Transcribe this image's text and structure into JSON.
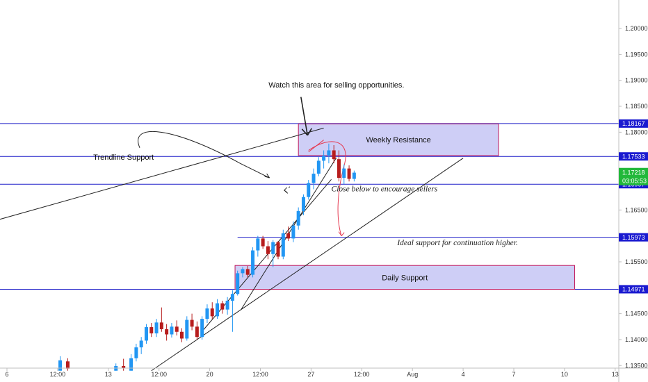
{
  "chart_data": {
    "type": "candlestick",
    "y_axis": {
      "range": [
        1.1345,
        1.2055
      ],
      "ticks": [
        "1.20000",
        "1.19500",
        "1.19000",
        "1.18500",
        "1.18000",
        "1.16500",
        "1.16000",
        "1.15500",
        "1.14500",
        "1.14000",
        "1.13500"
      ]
    },
    "x_axis": {
      "range": [
        0,
        17.5
      ],
      "ticks": [
        {
          "label": "6",
          "x": 0
        },
        {
          "label": "12:00",
          "x": 1
        },
        {
          "label": "13",
          "x": 2
        },
        {
          "label": "12:00",
          "x": 3
        },
        {
          "label": "20",
          "x": 4
        },
        {
          "label": "12:00",
          "x": 5
        },
        {
          "label": "27",
          "x": 6
        },
        {
          "label": "12:00",
          "x": 7
        },
        {
          "label": "Aug",
          "x": 8
        },
        {
          "label": "4",
          "x": 9
        },
        {
          "label": "7",
          "x": 10
        },
        {
          "label": "10",
          "x": 11
        },
        {
          "label": "13",
          "x": 12
        }
      ]
    },
    "grid": false,
    "colors": {
      "up": "#2196f3",
      "down": "#b71c1c",
      "level_line": "#1e1ec8",
      "zone_fill": "#c5c5f5",
      "zone_border": "#c2185b",
      "arrow": "#e53950",
      "current_price": "#22b83a",
      "tag": "#1a1ad0"
    },
    "current_price": {
      "price": 1.17218,
      "label": "1.17218",
      "countdown": "03:05:53"
    },
    "levels": [
      {
        "price": 1.18167,
        "label": "1.18167"
      },
      {
        "price": 1.17533,
        "label": "1.17533"
      },
      {
        "price": 1.16997,
        "label": "1.16997"
      },
      {
        "price": 1.15973,
        "label": "1.15973",
        "x_start": 4.55
      },
      {
        "price": 1.14971,
        "label": "1.14971"
      }
    ],
    "zones": [
      {
        "label": "Weekly Resistance",
        "x": [
          5.75,
          9.7
        ],
        "y": [
          1.1755,
          1.1816
        ]
      },
      {
        "label": "Daily Support",
        "x": [
          4.5,
          11.2
        ],
        "y": [
          1.1497,
          1.1543
        ]
      }
    ],
    "annotations": [
      {
        "text": "Watch this area for selling opportunities.",
        "x": 6.5,
        "y": 1.1886
      },
      {
        "text": "Trendline Support",
        "x": 2.3,
        "y": 1.1747
      },
      {
        "text": "Close below to encourage sellers",
        "x": 6.4,
        "y": 1.1686
      },
      {
        "text": "Ideal support for continuation higher.",
        "x": 7.7,
        "y": 1.1582
      }
    ],
    "candles": [
      {
        "x": 1.05,
        "o": 1.134,
        "h": 1.1368,
        "l": 1.134,
        "c": 1.136
      },
      {
        "x": 1.2,
        "o": 1.1358,
        "h": 1.1364,
        "l": 1.134,
        "c": 1.1344
      },
      {
        "x": 2.15,
        "o": 1.134,
        "h": 1.1354,
        "l": 1.134,
        "c": 1.1349
      },
      {
        "x": 2.3,
        "o": 1.1349,
        "h": 1.1363,
        "l": 1.134,
        "c": 1.1345
      },
      {
        "x": 2.45,
        "o": 1.134,
        "h": 1.1372,
        "l": 1.134,
        "c": 1.1364
      },
      {
        "x": 2.55,
        "o": 1.1364,
        "h": 1.1392,
        "l": 1.1358,
        "c": 1.1385
      },
      {
        "x": 2.65,
        "o": 1.1385,
        "h": 1.1405,
        "l": 1.1372,
        "c": 1.1398
      },
      {
        "x": 2.75,
        "o": 1.1398,
        "h": 1.143,
        "l": 1.1392,
        "c": 1.1424
      },
      {
        "x": 2.85,
        "o": 1.1424,
        "h": 1.1432,
        "l": 1.1405,
        "c": 1.1412
      },
      {
        "x": 2.95,
        "o": 1.1412,
        "h": 1.144,
        "l": 1.1405,
        "c": 1.1433
      },
      {
        "x": 3.05,
        "o": 1.1433,
        "h": 1.1462,
        "l": 1.1415,
        "c": 1.142
      },
      {
        "x": 3.15,
        "o": 1.142,
        "h": 1.143,
        "l": 1.1398,
        "c": 1.141
      },
      {
        "x": 3.25,
        "o": 1.141,
        "h": 1.1432,
        "l": 1.1404,
        "c": 1.1425
      },
      {
        "x": 3.35,
        "o": 1.1425,
        "h": 1.1437,
        "l": 1.1408,
        "c": 1.1415
      },
      {
        "x": 3.45,
        "o": 1.1415,
        "h": 1.1422,
        "l": 1.1395,
        "c": 1.1402
      },
      {
        "x": 3.55,
        "o": 1.1402,
        "h": 1.1445,
        "l": 1.1398,
        "c": 1.1438
      },
      {
        "x": 3.65,
        "o": 1.1438,
        "h": 1.145,
        "l": 1.1418,
        "c": 1.1425
      },
      {
        "x": 3.75,
        "o": 1.1425,
        "h": 1.1435,
        "l": 1.14,
        "c": 1.1405
      },
      {
        "x": 3.85,
        "o": 1.1405,
        "h": 1.1445,
        "l": 1.14,
        "c": 1.144
      },
      {
        "x": 3.95,
        "o": 1.144,
        "h": 1.1468,
        "l": 1.1432,
        "c": 1.146
      },
      {
        "x": 4.05,
        "o": 1.146,
        "h": 1.1472,
        "l": 1.144,
        "c": 1.1445
      },
      {
        "x": 4.15,
        "o": 1.1445,
        "h": 1.1478,
        "l": 1.144,
        "c": 1.147
      },
      {
        "x": 4.25,
        "o": 1.147,
        "h": 1.1475,
        "l": 1.145,
        "c": 1.1458
      },
      {
        "x": 4.35,
        "o": 1.1458,
        "h": 1.1482,
        "l": 1.1448,
        "c": 1.1475
      },
      {
        "x": 4.45,
        "o": 1.1475,
        "h": 1.1495,
        "l": 1.1415,
        "c": 1.1488
      },
      {
        "x": 4.55,
        "o": 1.1488,
        "h": 1.1533,
        "l": 1.1485,
        "c": 1.1528
      },
      {
        "x": 4.65,
        "o": 1.1528,
        "h": 1.154,
        "l": 1.152,
        "c": 1.1536
      },
      {
        "x": 4.75,
        "o": 1.1536,
        "h": 1.1542,
        "l": 1.152,
        "c": 1.1525
      },
      {
        "x": 4.85,
        "o": 1.1525,
        "h": 1.1578,
        "l": 1.152,
        "c": 1.1572
      },
      {
        "x": 4.95,
        "o": 1.1572,
        "h": 1.16,
        "l": 1.156,
        "c": 1.1595
      },
      {
        "x": 5.05,
        "o": 1.1595,
        "h": 1.16,
        "l": 1.1575,
        "c": 1.158
      },
      {
        "x": 5.15,
        "o": 1.158,
        "h": 1.159,
        "l": 1.1555,
        "c": 1.1565
      },
      {
        "x": 5.25,
        "o": 1.1565,
        "h": 1.1592,
        "l": 1.154,
        "c": 1.1588
      },
      {
        "x": 5.35,
        "o": 1.1588,
        "h": 1.159,
        "l": 1.1555,
        "c": 1.156
      },
      {
        "x": 5.45,
        "o": 1.156,
        "h": 1.1612,
        "l": 1.1555,
        "c": 1.1605
      },
      {
        "x": 5.55,
        "o": 1.1605,
        "h": 1.1618,
        "l": 1.159,
        "c": 1.1595
      },
      {
        "x": 5.65,
        "o": 1.1595,
        "h": 1.1628,
        "l": 1.1588,
        "c": 1.162
      },
      {
        "x": 5.75,
        "o": 1.162,
        "h": 1.1655,
        "l": 1.1612,
        "c": 1.1648
      },
      {
        "x": 5.85,
        "o": 1.1648,
        "h": 1.168,
        "l": 1.164,
        "c": 1.1675
      },
      {
        "x": 5.95,
        "o": 1.1675,
        "h": 1.1708,
        "l": 1.167,
        "c": 1.1702
      },
      {
        "x": 6.05,
        "o": 1.1702,
        "h": 1.173,
        "l": 1.169,
        "c": 1.172
      },
      {
        "x": 6.15,
        "o": 1.172,
        "h": 1.1752,
        "l": 1.1715,
        "c": 1.1745
      },
      {
        "x": 6.25,
        "o": 1.1745,
        "h": 1.1765,
        "l": 1.173,
        "c": 1.1755
      },
      {
        "x": 6.35,
        "o": 1.1755,
        "h": 1.1778,
        "l": 1.174,
        "c": 1.1765
      },
      {
        "x": 6.45,
        "o": 1.1765,
        "h": 1.1775,
        "l": 1.174,
        "c": 1.1748
      },
      {
        "x": 6.55,
        "o": 1.1748,
        "h": 1.1765,
        "l": 1.1705,
        "c": 1.1712
      },
      {
        "x": 6.65,
        "o": 1.1712,
        "h": 1.1738,
        "l": 1.17,
        "c": 1.173
      },
      {
        "x": 6.75,
        "o": 1.173,
        "h": 1.1736,
        "l": 1.1705,
        "c": 1.171
      },
      {
        "x": 6.85,
        "o": 1.171,
        "h": 1.1726,
        "l": 1.1705,
        "c": 1.1722
      }
    ]
  }
}
